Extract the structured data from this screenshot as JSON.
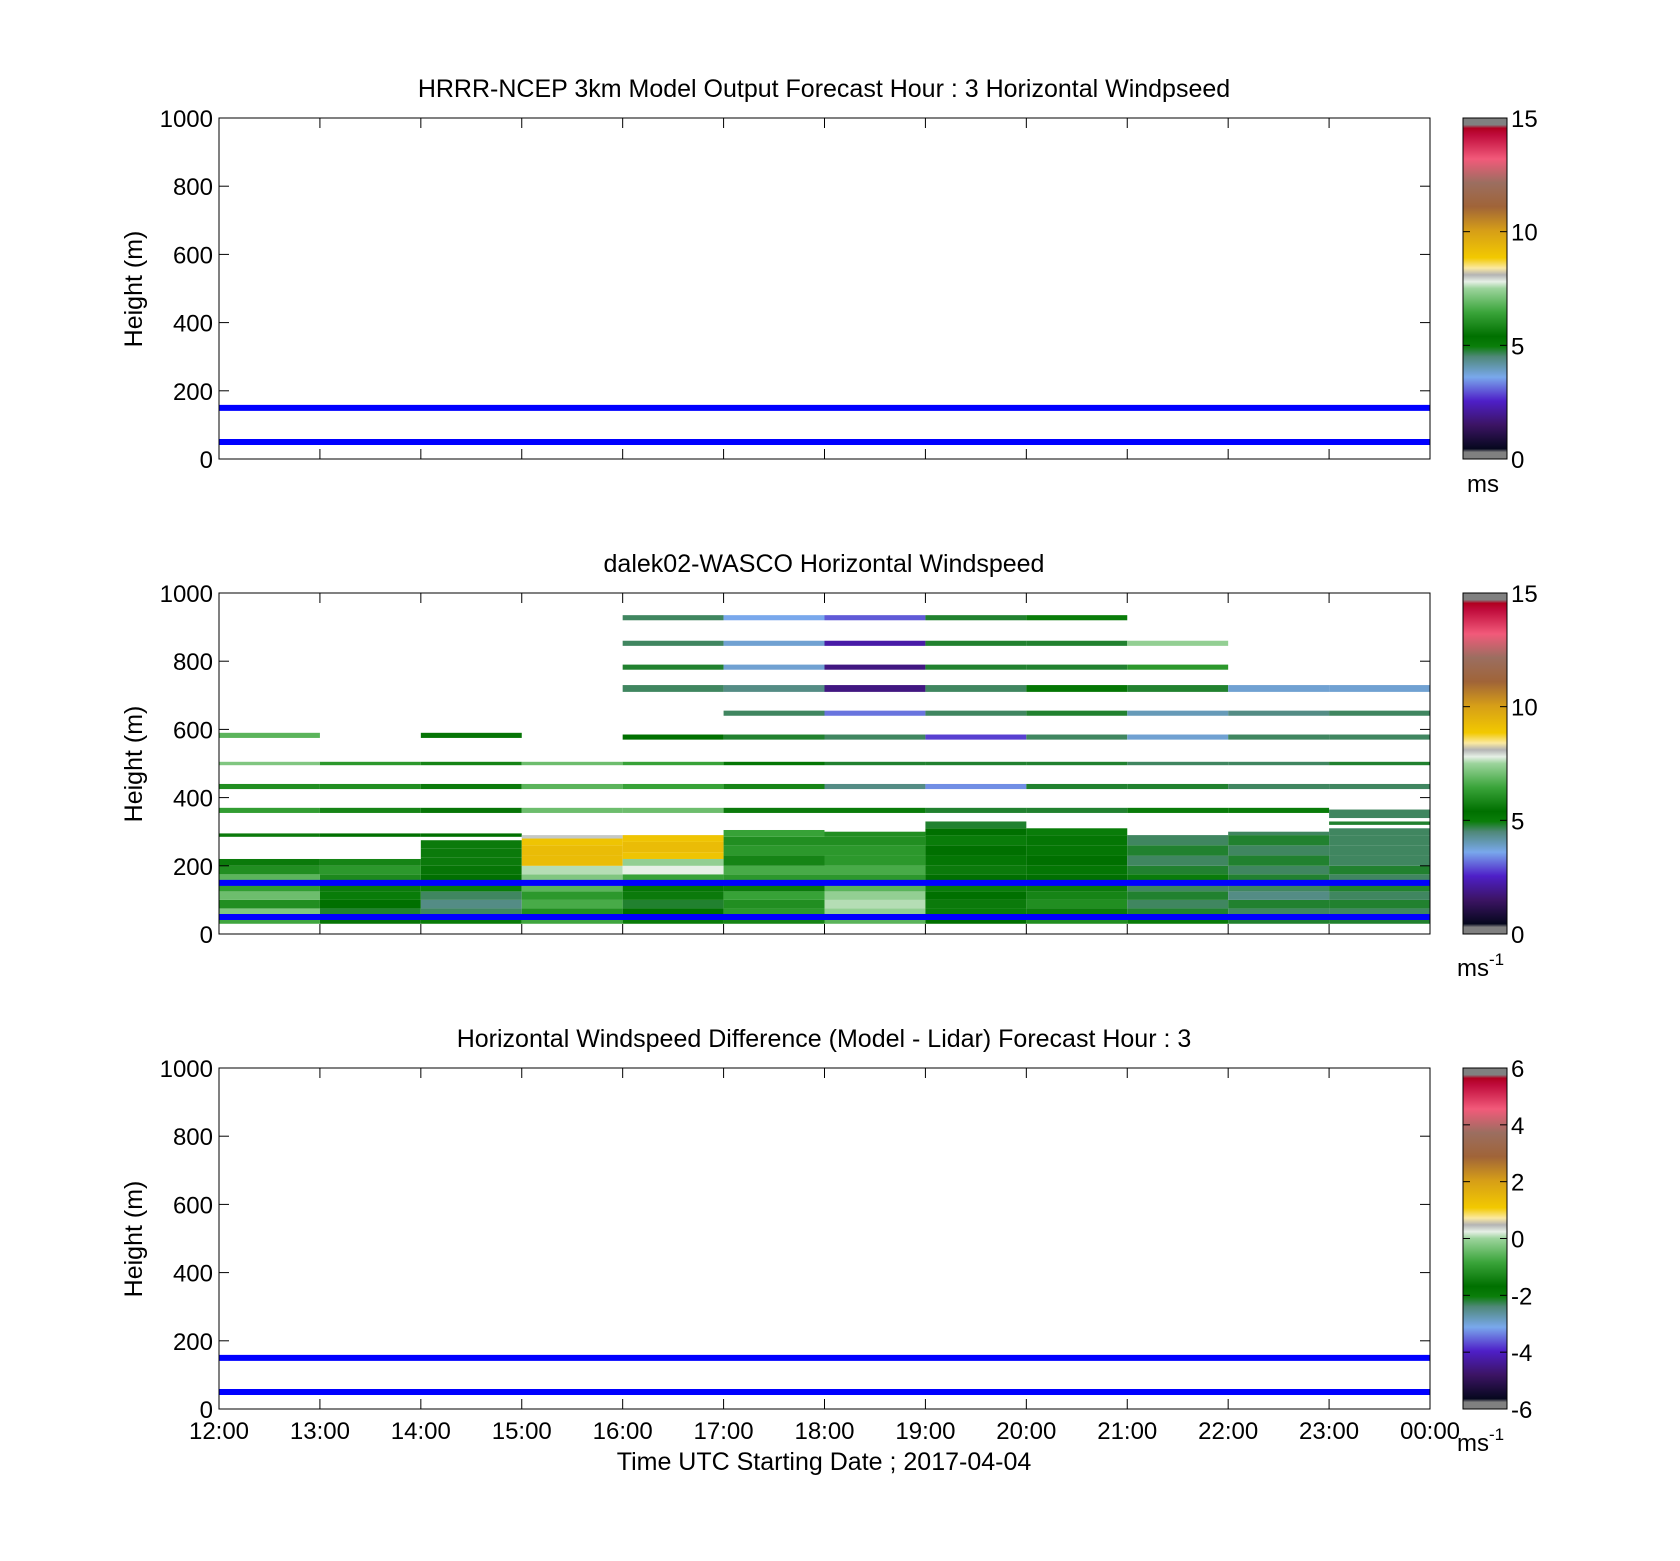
{
  "figure": {
    "xlabel": "Time UTC  Starting Date ; 2017-04-04",
    "x_tick_labels": [
      "12:00",
      "13:00",
      "14:00",
      "15:00",
      "16:00",
      "17:00",
      "18:00",
      "19:00",
      "20:00",
      "21:00",
      "22:00",
      "23:00",
      "00:00"
    ],
    "colors": {
      "reference_line": "#0000ff",
      "axes": "#000000",
      "background": "#ffffff"
    }
  },
  "chart_data": [
    {
      "type": "heatmap",
      "title": "HRRR-NCEP 3km Model Output   Forecast Hour : 3 Horizontal Windpseed",
      "ylabel": "Height (m)",
      "ylim": [
        0,
        1000
      ],
      "y_ticks": [
        0,
        200,
        400,
        600,
        800,
        1000
      ],
      "xlim_hours": [
        12,
        24
      ],
      "reference_lines_m": [
        50,
        150
      ],
      "cells": [],
      "colorbar": {
        "range": [
          0,
          15
        ],
        "ticks": [
          0,
          5,
          10,
          15
        ],
        "unit_base": "ms",
        "unit_sup": ""
      }
    },
    {
      "type": "heatmap",
      "title": "dalek02-WASCO  Horizontal Windspeed",
      "ylabel": "Height (m)",
      "ylim": [
        0,
        1000
      ],
      "y_ticks": [
        0,
        200,
        400,
        600,
        800,
        1000
      ],
      "xlim_hours": [
        12,
        24
      ],
      "reference_lines_m": [
        50,
        150
      ],
      "cells_columns": [
        "hour_start",
        "height_bottom_m",
        "height_top_m",
        "windspeed_ms"
      ],
      "cells": [
        [
          12,
          30,
          50,
          6.5
        ],
        [
          12,
          50,
          75,
          7.2
        ],
        [
          12,
          75,
          100,
          6.0
        ],
        [
          12,
          100,
          125,
          7.0
        ],
        [
          12,
          125,
          150,
          6.3
        ],
        [
          12,
          150,
          175,
          6.8
        ],
        [
          12,
          175,
          200,
          6.0
        ],
        [
          12,
          200,
          220,
          5.6
        ],
        [
          12,
          285,
          295,
          5.6
        ],
        [
          12,
          355,
          370,
          6.3
        ],
        [
          12,
          425,
          440,
          6.0
        ],
        [
          12,
          495,
          505,
          7.2
        ],
        [
          12,
          575,
          590,
          6.8
        ],
        [
          13,
          30,
          50,
          5.5
        ],
        [
          13,
          50,
          75,
          4.8
        ],
        [
          13,
          75,
          100,
          5.4
        ],
        [
          13,
          100,
          125,
          5.0
        ],
        [
          13,
          125,
          150,
          5.6
        ],
        [
          13,
          150,
          175,
          5.9
        ],
        [
          13,
          175,
          200,
          6.2
        ],
        [
          13,
          200,
          220,
          5.8
        ],
        [
          13,
          285,
          295,
          5.4
        ],
        [
          13,
          355,
          370,
          5.8
        ],
        [
          13,
          425,
          440,
          6.0
        ],
        [
          13,
          495,
          505,
          6.2
        ],
        [
          14,
          30,
          50,
          5.0
        ],
        [
          14,
          50,
          75,
          4.6
        ],
        [
          14,
          75,
          100,
          4.4
        ],
        [
          14,
          100,
          125,
          4.6
        ],
        [
          14,
          125,
          150,
          5.0
        ],
        [
          14,
          150,
          175,
          5.4
        ],
        [
          14,
          175,
          200,
          5.5
        ],
        [
          14,
          200,
          225,
          5.6
        ],
        [
          14,
          225,
          250,
          5.6
        ],
        [
          14,
          250,
          275,
          5.6
        ],
        [
          14,
          285,
          295,
          5.4
        ],
        [
          14,
          355,
          370,
          5.5
        ],
        [
          14,
          425,
          440,
          5.6
        ],
        [
          14,
          495,
          505,
          5.8
        ],
        [
          14,
          575,
          590,
          5.5
        ],
        [
          15,
          30,
          50,
          6.5
        ],
        [
          15,
          50,
          75,
          6.0
        ],
        [
          15,
          75,
          100,
          6.6
        ],
        [
          15,
          100,
          125,
          6.2
        ],
        [
          15,
          125,
          150,
          6.8
        ],
        [
          15,
          150,
          175,
          7.2
        ],
        [
          15,
          175,
          200,
          7.6
        ],
        [
          15,
          200,
          230,
          9.2
        ],
        [
          15,
          230,
          260,
          9.2
        ],
        [
          15,
          260,
          280,
          9.0
        ],
        [
          15,
          280,
          290,
          8.0
        ],
        [
          15,
          355,
          370,
          7.0
        ],
        [
          15,
          425,
          440,
          6.8
        ],
        [
          15,
          495,
          505,
          7.0
        ],
        [
          16,
          30,
          50,
          5.0
        ],
        [
          16,
          50,
          75,
          5.4
        ],
        [
          16,
          75,
          100,
          4.8
        ],
        [
          16,
          100,
          125,
          5.6
        ],
        [
          16,
          125,
          150,
          5.2
        ],
        [
          16,
          150,
          175,
          6.4
        ],
        [
          16,
          175,
          200,
          7.8
        ],
        [
          16,
          200,
          220,
          7.4
        ],
        [
          16,
          220,
          240,
          9.0
        ],
        [
          16,
          240,
          270,
          9.2
        ],
        [
          16,
          270,
          290,
          9.0
        ],
        [
          16,
          355,
          370,
          7.0
        ],
        [
          16,
          425,
          440,
          6.4
        ],
        [
          16,
          495,
          505,
          6.4
        ],
        [
          16,
          570,
          585,
          5.4
        ],
        [
          16,
          710,
          730,
          4.6
        ],
        [
          16,
          775,
          790,
          4.8
        ],
        [
          16,
          845,
          860,
          4.6
        ],
        [
          16,
          920,
          935,
          4.6
        ],
        [
          17,
          30,
          50,
          5.8
        ],
        [
          17,
          50,
          75,
          6.2
        ],
        [
          17,
          75,
          100,
          6.0
        ],
        [
          17,
          100,
          125,
          6.4
        ],
        [
          17,
          125,
          150,
          5.6
        ],
        [
          17,
          150,
          175,
          6.2
        ],
        [
          17,
          175,
          200,
          6.6
        ],
        [
          17,
          200,
          230,
          5.8
        ],
        [
          17,
          230,
          260,
          6.2
        ],
        [
          17,
          260,
          285,
          6.0
        ],
        [
          17,
          285,
          305,
          6.4
        ],
        [
          17,
          355,
          370,
          5.6
        ],
        [
          17,
          425,
          440,
          5.8
        ],
        [
          17,
          495,
          505,
          5.2
        ],
        [
          17,
          570,
          585,
          4.8
        ],
        [
          17,
          640,
          655,
          4.6
        ],
        [
          17,
          710,
          730,
          4.4
        ],
        [
          17,
          775,
          790,
          3.8
        ],
        [
          17,
          845,
          860,
          3.8
        ],
        [
          17,
          920,
          935,
          3.6
        ],
        [
          18,
          30,
          50,
          6.8
        ],
        [
          18,
          50,
          75,
          7.4
        ],
        [
          18,
          75,
          100,
          7.6
        ],
        [
          18,
          100,
          125,
          7.4
        ],
        [
          18,
          125,
          150,
          6.8
        ],
        [
          18,
          150,
          175,
          6.2
        ],
        [
          18,
          175,
          200,
          6.6
        ],
        [
          18,
          200,
          230,
          6.2
        ],
        [
          18,
          230,
          260,
          6.2
        ],
        [
          18,
          260,
          285,
          6.0
        ],
        [
          18,
          285,
          300,
          6.0
        ],
        [
          18,
          355,
          370,
          5.0
        ],
        [
          18,
          425,
          440,
          4.4
        ],
        [
          18,
          495,
          505,
          4.8
        ],
        [
          18,
          570,
          585,
          4.6
        ],
        [
          18,
          640,
          655,
          3.2
        ],
        [
          18,
          710,
          730,
          1.8
        ],
        [
          18,
          775,
          790,
          1.8
        ],
        [
          18,
          845,
          860,
          2.2
        ],
        [
          18,
          920,
          935,
          3.0
        ],
        [
          19,
          30,
          50,
          5.4
        ],
        [
          19,
          50,
          75,
          5.0
        ],
        [
          19,
          75,
          100,
          5.6
        ],
        [
          19,
          100,
          125,
          5.4
        ],
        [
          19,
          125,
          150,
          5.0
        ],
        [
          19,
          150,
          175,
          5.4
        ],
        [
          19,
          175,
          200,
          5.6
        ],
        [
          19,
          200,
          230,
          5.2
        ],
        [
          19,
          230,
          260,
          5.4
        ],
        [
          19,
          260,
          290,
          5.0
        ],
        [
          19,
          290,
          310,
          5.4
        ],
        [
          19,
          310,
          330,
          4.8
        ],
        [
          19,
          355,
          370,
          4.8
        ],
        [
          19,
          425,
          440,
          3.4
        ],
        [
          19,
          495,
          505,
          4.8
        ],
        [
          19,
          570,
          585,
          2.8
        ],
        [
          19,
          640,
          655,
          4.6
        ],
        [
          19,
          710,
          730,
          4.6
        ],
        [
          19,
          775,
          790,
          4.8
        ],
        [
          19,
          845,
          860,
          4.8
        ],
        [
          19,
          920,
          935,
          4.8
        ],
        [
          20,
          30,
          50,
          6.0
        ],
        [
          20,
          50,
          75,
          5.6
        ],
        [
          20,
          75,
          100,
          6.0
        ],
        [
          20,
          100,
          125,
          5.8
        ],
        [
          20,
          125,
          150,
          5.6
        ],
        [
          20,
          150,
          175,
          5.4
        ],
        [
          20,
          175,
          200,
          5.2
        ],
        [
          20,
          200,
          230,
          5.4
        ],
        [
          20,
          230,
          260,
          5.2
        ],
        [
          20,
          260,
          290,
          5.2
        ],
        [
          20,
          290,
          310,
          5.0
        ],
        [
          20,
          355,
          370,
          4.8
        ],
        [
          20,
          425,
          440,
          4.8
        ],
        [
          20,
          495,
          505,
          4.8
        ],
        [
          20,
          570,
          585,
          4.6
        ],
        [
          20,
          640,
          655,
          4.8
        ],
        [
          20,
          710,
          730,
          5.2
        ],
        [
          20,
          775,
          790,
          4.8
        ],
        [
          20,
          845,
          860,
          4.8
        ],
        [
          20,
          920,
          935,
          5.0
        ],
        [
          21,
          30,
          50,
          5.0
        ],
        [
          21,
          50,
          75,
          4.8
        ],
        [
          21,
          75,
          100,
          4.6
        ],
        [
          21,
          100,
          125,
          4.8
        ],
        [
          21,
          125,
          150,
          4.6
        ],
        [
          21,
          150,
          175,
          5.0
        ],
        [
          21,
          175,
          200,
          4.8
        ],
        [
          21,
          200,
          230,
          4.6
        ],
        [
          21,
          230,
          260,
          4.8
        ],
        [
          21,
          260,
          290,
          4.6
        ],
        [
          21,
          355,
          370,
          5.0
        ],
        [
          21,
          425,
          440,
          4.8
        ],
        [
          21,
          495,
          505,
          4.6
        ],
        [
          21,
          570,
          585,
          3.8
        ],
        [
          21,
          640,
          655,
          4.0
        ],
        [
          21,
          710,
          730,
          4.8
        ],
        [
          21,
          775,
          790,
          6.2
        ],
        [
          21,
          845,
          860,
          7.4
        ],
        [
          22,
          30,
          50,
          4.8
        ],
        [
          22,
          50,
          75,
          4.6
        ],
        [
          22,
          75,
          100,
          4.8
        ],
        [
          22,
          100,
          125,
          4.4
        ],
        [
          22,
          125,
          150,
          4.6
        ],
        [
          22,
          150,
          175,
          4.8
        ],
        [
          22,
          175,
          200,
          4.6
        ],
        [
          22,
          200,
          230,
          4.8
        ],
        [
          22,
          230,
          260,
          4.6
        ],
        [
          22,
          260,
          290,
          4.8
        ],
        [
          22,
          290,
          300,
          4.6
        ],
        [
          22,
          355,
          370,
          5.0
        ],
        [
          22,
          425,
          440,
          4.6
        ],
        [
          22,
          495,
          505,
          4.6
        ],
        [
          22,
          570,
          585,
          4.6
        ],
        [
          22,
          640,
          655,
          4.4
        ],
        [
          22,
          710,
          730,
          3.8
        ],
        [
          23,
          30,
          50,
          4.8
        ],
        [
          23,
          50,
          75,
          4.6
        ],
        [
          23,
          75,
          100,
          4.8
        ],
        [
          23,
          100,
          125,
          4.6
        ],
        [
          23,
          125,
          150,
          4.8
        ],
        [
          23,
          150,
          175,
          4.6
        ],
        [
          23,
          175,
          200,
          4.8
        ],
        [
          23,
          200,
          230,
          4.6
        ],
        [
          23,
          230,
          260,
          4.6
        ],
        [
          23,
          260,
          290,
          4.6
        ],
        [
          23,
          290,
          310,
          4.6
        ],
        [
          23,
          320,
          330,
          4.8
        ],
        [
          23,
          340,
          365,
          4.6
        ],
        [
          23,
          425,
          440,
          4.6
        ],
        [
          23,
          495,
          505,
          4.8
        ],
        [
          23,
          570,
          585,
          4.6
        ],
        [
          23,
          640,
          655,
          4.6
        ],
        [
          23,
          710,
          730,
          3.8
        ]
      ],
      "colorbar": {
        "range": [
          0,
          15
        ],
        "ticks": [
          0,
          5,
          10,
          15
        ],
        "unit_base": "ms",
        "unit_sup": "-1"
      }
    },
    {
      "type": "heatmap",
      "title": "Horizontal Windspeed Difference (Model - Lidar) Forecast Hour : 3",
      "ylabel": "Height (m)",
      "ylim": [
        0,
        1000
      ],
      "y_ticks": [
        0,
        200,
        400,
        600,
        800,
        1000
      ],
      "xlim_hours": [
        12,
        24
      ],
      "reference_lines_m": [
        50,
        150
      ],
      "cells": [],
      "colorbar": {
        "range": [
          -6,
          6
        ],
        "ticks": [
          -6,
          -4,
          -2,
          0,
          2,
          4,
          6
        ],
        "unit_base": "ms",
        "unit_sup": "-1"
      }
    }
  ],
  "colormap_stops": [
    [
      0.0,
      "#808080"
    ],
    [
      0.02,
      "#808080"
    ],
    [
      0.03,
      "#06081e"
    ],
    [
      0.1,
      "#3c1464"
    ],
    [
      0.17,
      "#4e1fc8"
    ],
    [
      0.24,
      "#79a8ec"
    ],
    [
      0.3,
      "#4f8878"
    ],
    [
      0.33,
      "#0a7e0a"
    ],
    [
      0.36,
      "#007000"
    ],
    [
      0.43,
      "#3aa43a"
    ],
    [
      0.5,
      "#9cd49c"
    ],
    [
      0.52,
      "#e6f0e6"
    ],
    [
      0.54,
      "#b4b4b4"
    ],
    [
      0.56,
      "#fbe9a0"
    ],
    [
      0.59,
      "#f2c900"
    ],
    [
      0.67,
      "#d69e18"
    ],
    [
      0.74,
      "#a06438"
    ],
    [
      0.81,
      "#9b6e60"
    ],
    [
      0.88,
      "#f25a7a"
    ],
    [
      0.95,
      "#c00c3c"
    ],
    [
      0.97,
      "#b00020"
    ],
    [
      0.98,
      "#808080"
    ],
    [
      1.0,
      "#808080"
    ]
  ]
}
